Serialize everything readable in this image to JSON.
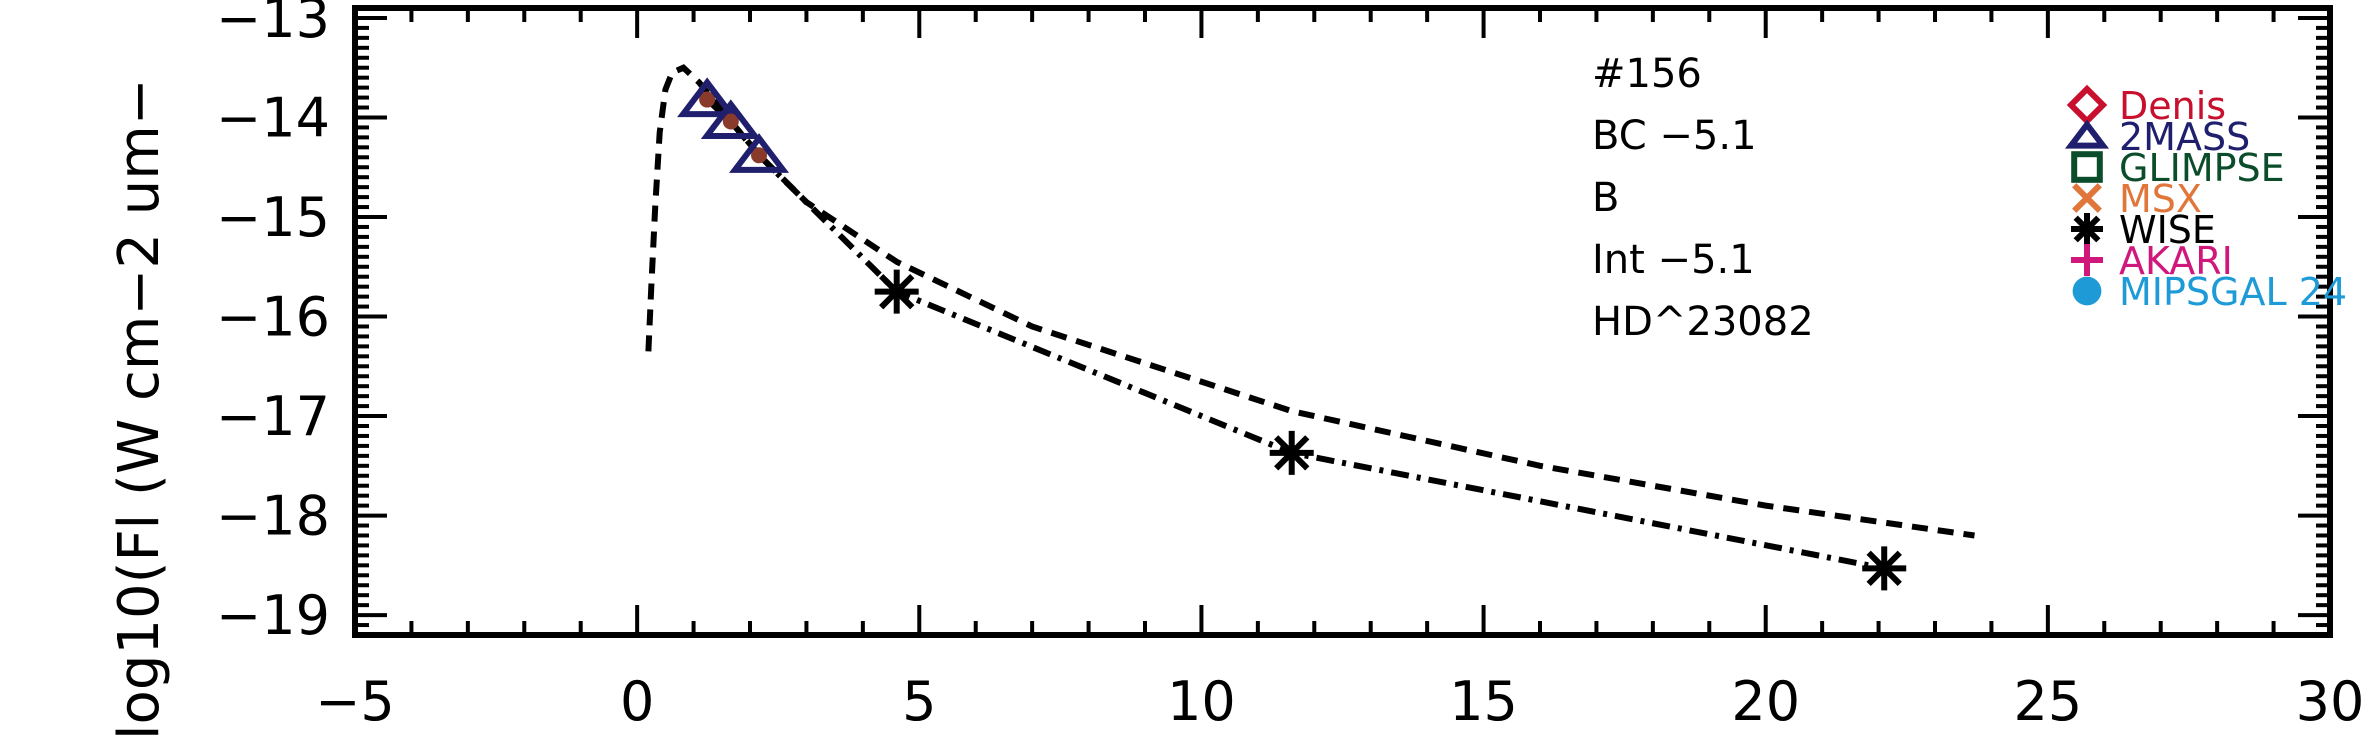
{
  "chart_data": {
    "type": "scatter",
    "title": "",
    "xlabel": "",
    "ylabel": "log10(Fl (W cm−2 um−",
    "xlim": [
      -5,
      30
    ],
    "ylim": [
      -19.2,
      -12.9
    ],
    "x_ticks": [
      -5,
      0,
      5,
      10,
      15,
      20,
      25,
      30
    ],
    "x_tick_labels": [
      "−5",
      "0",
      "5",
      "10",
      "15",
      "20",
      "25",
      "30"
    ],
    "y_ticks": [
      -13,
      -14,
      -15,
      -16,
      -17,
      -18,
      -19
    ],
    "y_tick_labels": [
      "−13",
      "−14",
      "−15",
      "−16",
      "−17",
      "−18",
      "−19"
    ],
    "grid": false,
    "annotations": [
      "#156",
      "BC  −5.1",
      "B",
      "Int  −5.1",
      "HD^23082"
    ],
    "legend": {
      "position": "top-right",
      "entries": [
        {
          "name": "Denis",
          "marker": "diamond",
          "color": "#c8102e"
        },
        {
          "name": "2MASS",
          "marker": "triangle",
          "color": "#1f1f6e"
        },
        {
          "name": "GLIMPSE",
          "marker": "square",
          "color": "#0b4d2a"
        },
        {
          "name": "MSX",
          "marker": "x",
          "color": "#e0763a"
        },
        {
          "name": "WISE",
          "marker": "asterisk",
          "color": "#000000"
        },
        {
          "name": "AKARI",
          "marker": "plus",
          "color": "#d0177b"
        },
        {
          "name": "MIPSGAL 24",
          "marker": "circle",
          "color": "#1e9bd7"
        }
      ]
    },
    "series": [
      {
        "marker": "triangle",
        "color": "#1f1f6e",
        "points": [
          [
            1.24,
            -13.82
          ],
          [
            1.66,
            -14.04
          ],
          [
            2.16,
            -14.38
          ]
        ]
      },
      {
        "marker": "asterisk",
        "color": "#000000",
        "points": [
          [
            4.6,
            -15.75
          ],
          [
            11.6,
            -17.37
          ],
          [
            22.1,
            -18.53
          ]
        ]
      },
      {
        "line": "dashed",
        "color": "#000000",
        "points": [
          [
            0.2,
            -16.35
          ],
          [
            0.25,
            -15.7
          ],
          [
            0.32,
            -14.9
          ],
          [
            0.4,
            -14.15
          ],
          [
            0.5,
            -13.72
          ],
          [
            0.62,
            -13.55
          ],
          [
            0.82,
            -13.5
          ],
          [
            1.1,
            -13.65
          ],
          [
            1.6,
            -14.0
          ],
          [
            2.2,
            -14.4
          ],
          [
            3.0,
            -14.85
          ],
          [
            4.6,
            -15.45
          ],
          [
            7.0,
            -16.1
          ],
          [
            11.6,
            -16.95
          ],
          [
            16.0,
            -17.5
          ],
          [
            20.0,
            -17.9
          ],
          [
            23.7,
            -18.2
          ]
        ]
      },
      {
        "line": "dash-dot",
        "color": "#000000",
        "points": [
          [
            1.24,
            -13.82
          ],
          [
            1.66,
            -14.04
          ],
          [
            2.16,
            -14.38
          ],
          [
            4.6,
            -15.75
          ],
          [
            11.6,
            -17.37
          ],
          [
            22.1,
            -18.53
          ]
        ]
      }
    ],
    "measured_point_color": "#8a3a2a"
  }
}
